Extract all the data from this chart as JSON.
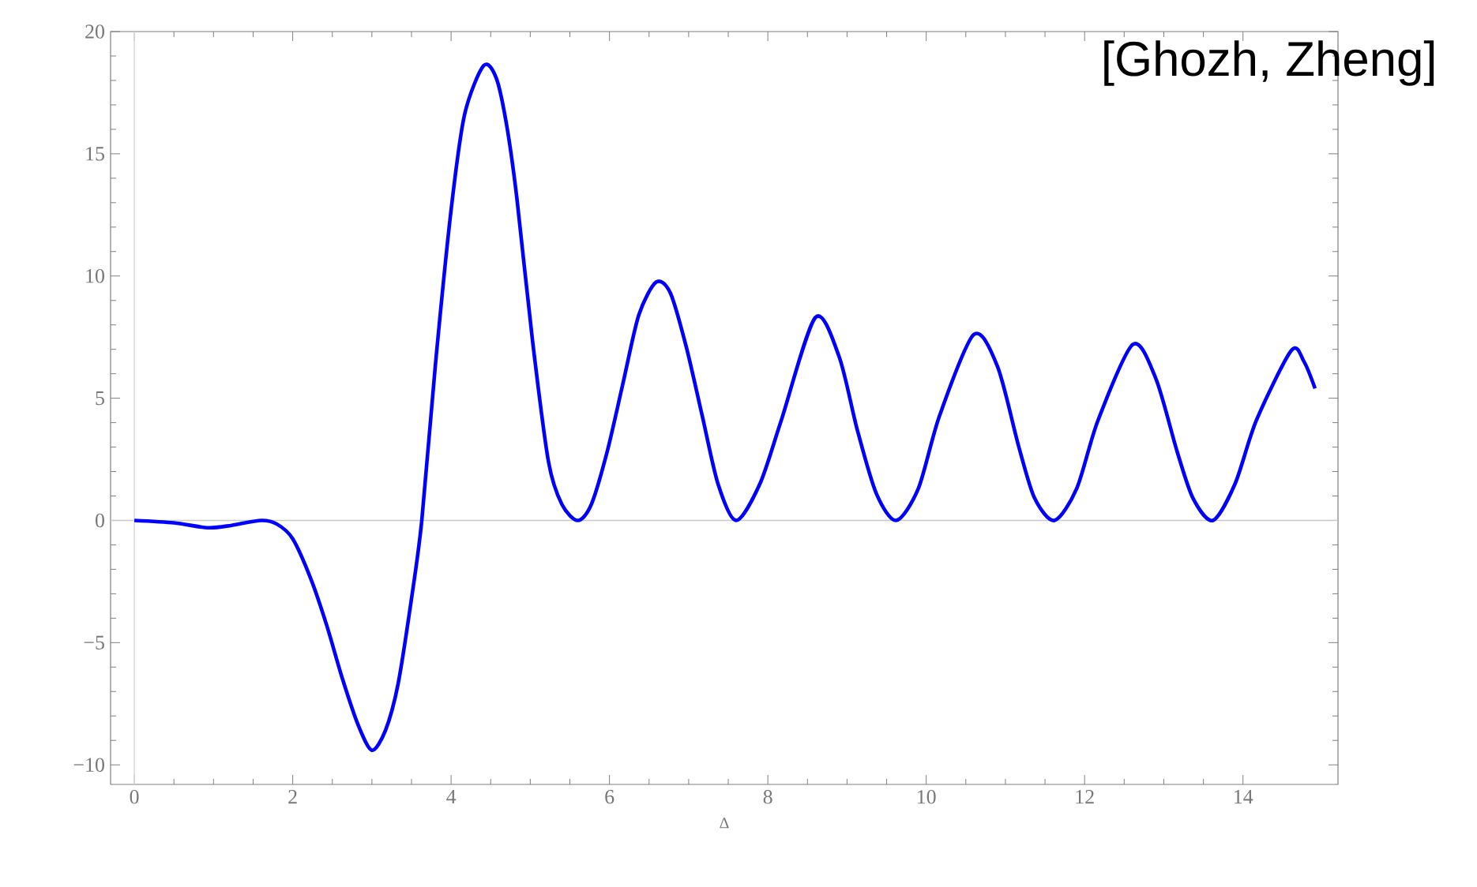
{
  "chart_data": {
    "type": "line",
    "xlabel": "Δ",
    "annotations": [
      "[Ghozh, Zheng]"
    ],
    "xlim": [
      -0.3,
      15.2
    ],
    "ylim": [
      -10.8,
      20
    ],
    "xticks": [
      0,
      2,
      4,
      6,
      8,
      10,
      12,
      14
    ],
    "yticks": [
      {
        "value": -10,
        "label": "−10"
      },
      {
        "value": -5,
        "label": "−5"
      },
      0,
      5,
      10,
      15,
      20
    ],
    "grid": false,
    "marker": "none",
    "line_style": "solid",
    "ref_lines": [
      {
        "axis": "y",
        "value": 0,
        "color": "#c8c8c8"
      },
      {
        "axis": "x",
        "value": 0,
        "color": "#dcdcdc"
      }
    ],
    "series": [
      {
        "color": "#0000ff",
        "x": [
          0,
          0.5,
          0.93,
          1.23,
          1.6,
          1.8,
          2.0,
          2.23,
          2.43,
          2.63,
          2.83,
          3.0,
          3.17,
          3.33,
          3.5,
          3.63,
          3.8,
          4.0,
          4.17,
          4.41,
          4.57,
          4.7,
          4.83,
          5.03,
          5.23,
          5.4,
          5.6,
          5.77,
          5.97,
          6.17,
          6.37,
          6.59,
          6.77,
          6.97,
          7.17,
          7.37,
          7.6,
          7.9,
          8.17,
          8.6,
          8.9,
          9.13,
          9.37,
          9.62,
          9.9,
          10.17,
          10.6,
          10.9,
          11.17,
          11.37,
          11.62,
          11.9,
          12.17,
          12.61,
          12.9,
          13.17,
          13.37,
          13.62,
          13.9,
          14.17,
          14.61,
          14.77,
          14.91
        ],
        "values": [
          0,
          -0.1,
          -0.3,
          -0.2,
          0,
          -0.15,
          -0.75,
          -2.4,
          -4.3,
          -6.5,
          -8.4,
          -9.4,
          -8.6,
          -6.7,
          -3.2,
          0,
          6.3,
          12.7,
          16.6,
          18.6,
          18.1,
          16.2,
          13.2,
          7.3,
          2.4,
          0.65,
          0,
          0.65,
          2.8,
          5.6,
          8.4,
          9.75,
          9.3,
          7.1,
          4.3,
          1.5,
          0,
          1.5,
          4.1,
          8.3,
          6.7,
          3.7,
          1.1,
          0,
          1.3,
          4.3,
          7.6,
          6.3,
          3.0,
          0.9,
          0,
          1.3,
          4.1,
          7.2,
          5.8,
          2.8,
          0.9,
          0,
          1.5,
          4.1,
          6.95,
          6.5,
          5.4
        ]
      }
    ]
  }
}
